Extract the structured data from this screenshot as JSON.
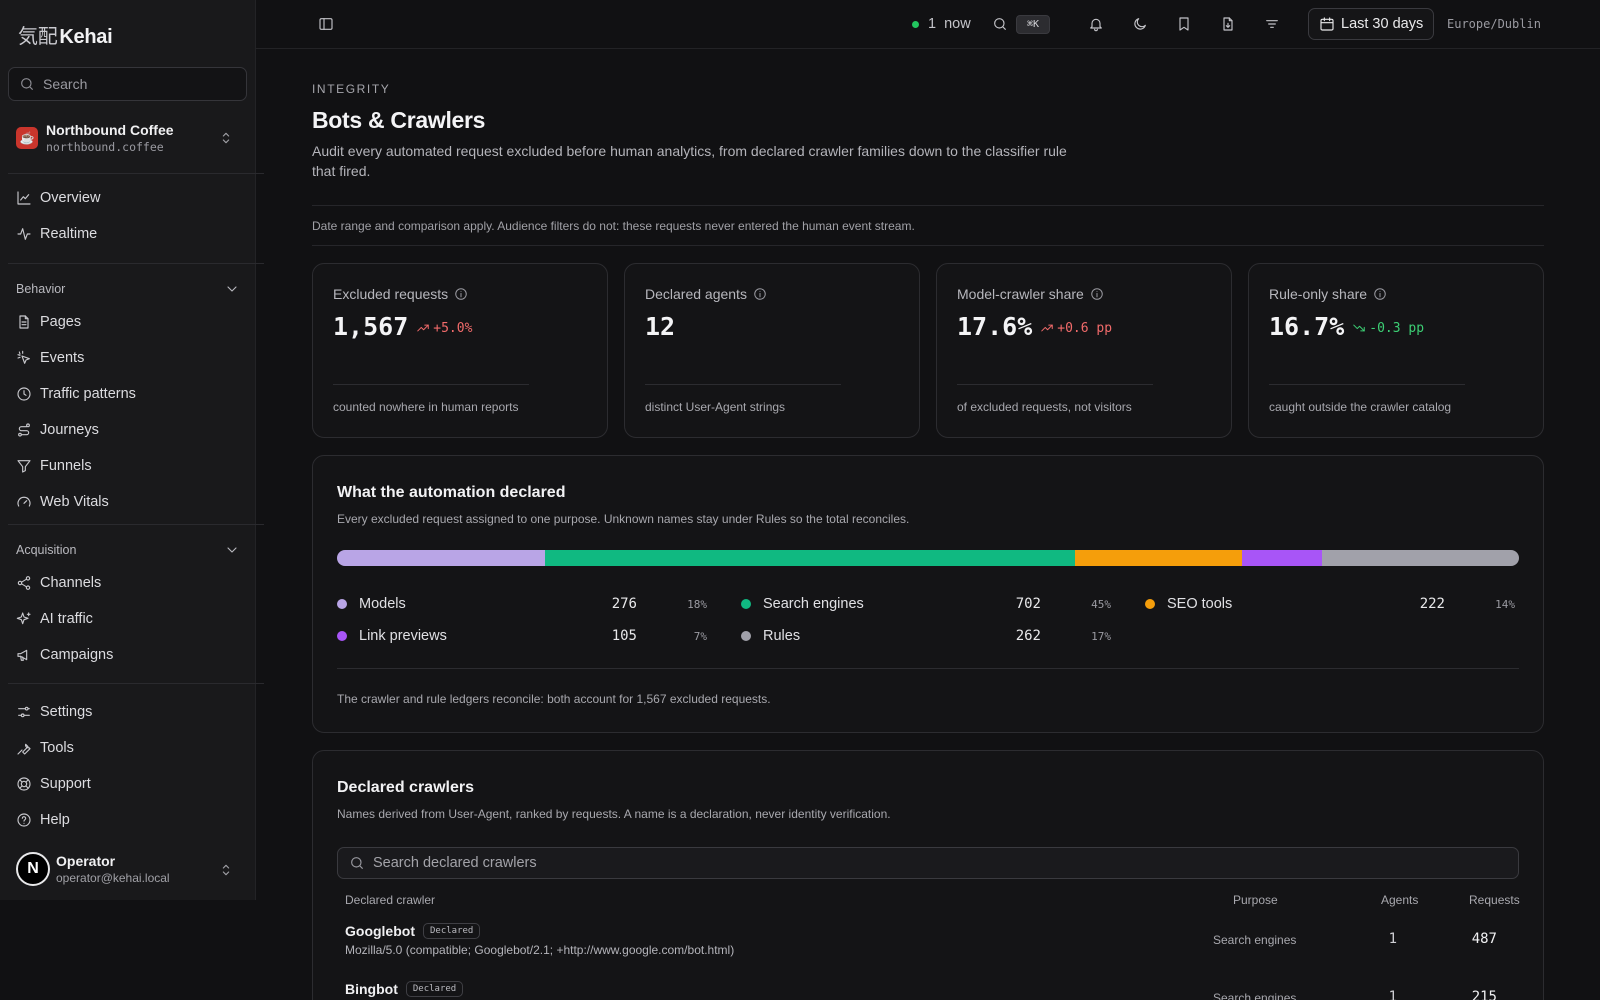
{
  "app": {
    "logo_jp": "気配",
    "logo_text": "Kehai"
  },
  "sidebar": {
    "search_placeholder": "Search",
    "project": {
      "icon": "☕",
      "name": "Northbound Coffee",
      "domain": "northbound.coffee"
    },
    "top_items": [
      {
        "label": "Overview",
        "icon": "chart-line-icon"
      },
      {
        "label": "Realtime",
        "icon": "activity-icon"
      }
    ],
    "sections": [
      {
        "label": "Behavior",
        "items": [
          "Pages",
          "Events",
          "Traffic patterns",
          "Journeys",
          "Funnels",
          "Web Vitals"
        ]
      },
      {
        "label": "Acquisition",
        "items": [
          "Channels",
          "AI traffic",
          "Campaigns"
        ]
      }
    ],
    "bottom_items": [
      "Settings",
      "Tools",
      "Support",
      "Help"
    ],
    "user": {
      "initial": "N",
      "name": "Operator",
      "email": "operator@kehai.local"
    }
  },
  "topbar": {
    "live_count": "1",
    "live_label": "now",
    "kbd": "⌘K",
    "date_range": "Last 30 days",
    "timezone": "Europe/Dublin"
  },
  "page": {
    "eyebrow": "INTEGRITY",
    "title": "Bots & Crawlers",
    "description": "Audit every automated request excluded before human analytics, from declared crawler families down to the classifier rule that fired.",
    "note": "Date range and comparison apply. Audience filters do not: these requests never entered the human event stream."
  },
  "kpis": [
    {
      "label": "Excluded requests",
      "value": "1,567",
      "delta": "+5.0%",
      "trend": "up",
      "foot": "counted nowhere in human reports"
    },
    {
      "label": "Declared agents",
      "value": "12",
      "delta": "",
      "trend": "none",
      "foot": "distinct User-Agent strings"
    },
    {
      "label": "Model-crawler share",
      "value": "17.6%",
      "delta": "+0.6 pp",
      "trend": "up",
      "foot": "of excluded requests, not visitors"
    },
    {
      "label": "Rule-only share",
      "value": "16.7%",
      "delta": "-0.3 pp",
      "trend": "down",
      "foot": "caught outside the crawler catalog"
    }
  ],
  "declared": {
    "title": "What the automation declared",
    "subtitle": "Every excluded request assigned to one purpose. Unknown names stay under Rules so the total reconciles.",
    "segments": [
      {
        "name": "Models",
        "count": "276",
        "pct": "18%",
        "share": 17.6,
        "color": "#b9a5e6"
      },
      {
        "name": "Search engines",
        "count": "702",
        "pct": "45%",
        "share": 44.8,
        "color": "#10b981"
      },
      {
        "name": "SEO tools",
        "count": "222",
        "pct": "14%",
        "share": 14.2,
        "color": "#f59e0b"
      },
      {
        "name": "Link previews",
        "count": "105",
        "pct": "7%",
        "share": 6.7,
        "color": "#a855f7"
      },
      {
        "name": "Rules",
        "count": "262",
        "pct": "17%",
        "share": 16.7,
        "color": "#a1a1aa"
      }
    ],
    "footer": "The crawler and rule ledgers reconcile: both account for 1,567 excluded requests."
  },
  "crawlers": {
    "title": "Declared crawlers",
    "subtitle": "Names derived from User-Agent, ranked by requests. A name is a declaration, never identity verification.",
    "search_placeholder": "Search declared crawlers",
    "columns": {
      "name": "Declared crawler",
      "purpose": "Purpose",
      "agents": "Agents",
      "requests": "Requests"
    },
    "rows": [
      {
        "name": "Googlebot",
        "badge": "Declared",
        "ua": "Mozilla/5.0 (compatible; Googlebot/2.1; +http://www.google.com/bot.html)",
        "purpose": "Search engines",
        "agents": "1",
        "requests": "487"
      },
      {
        "name": "Bingbot",
        "badge": "Declared",
        "ua": "",
        "purpose": "Search engines",
        "agents": "1",
        "requests": "215"
      }
    ]
  }
}
